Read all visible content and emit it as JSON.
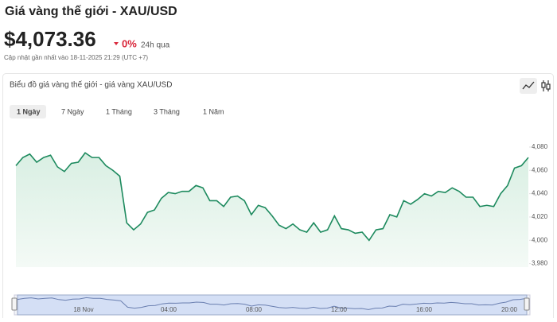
{
  "header": {
    "title": "Giá vàng thế giới - XAU/USD",
    "price": "$4,073.36",
    "change": "0%",
    "change_period": "24h qua",
    "updated": "Cập nhật gần nhất vào 18-11-2025 21:29 (UTC +7)"
  },
  "card": {
    "title": "Biểu đồ giá vàng thế giới - giá vàng XAU/USD"
  },
  "tabs": [
    "1 Ngày",
    "7 Ngày",
    "1 Tháng",
    "3 Tháng",
    "1 Năm"
  ],
  "navigator": {
    "labels": [
      "18 Nov",
      "04:00",
      "08:00",
      "12:00",
      "16:00",
      "20:00"
    ]
  },
  "chart_data": {
    "type": "area",
    "color": "#1d8a5e",
    "grid": false,
    "values": [
      4064,
      4071,
      4074,
      4067,
      4071,
      4073,
      4063,
      4059,
      4066,
      4067,
      4075,
      4071,
      4071,
      4064,
      4060,
      4055,
      4015,
      4009,
      4014,
      4024,
      4026,
      4036,
      4041,
      4040,
      4042,
      4042,
      4047,
      4045,
      4034,
      4034,
      4029,
      4037,
      4038,
      4034,
      4022,
      4030,
      4028,
      4021,
      4013,
      4010,
      4014,
      4009,
      4007,
      4015,
      4007,
      4009,
      4021,
      4010,
      4009,
      4006,
      4007,
      4000,
      4009,
      4010,
      4022,
      4020,
      4034,
      4031,
      4035,
      4040,
      4038,
      4042,
      4041,
      4045,
      4042,
      4037,
      4037,
      4029,
      4030,
      4029,
      4040,
      4047,
      4062,
      4064,
      4071
    ],
    "ylim": [
      3977,
      4097
    ],
    "yticks": [
      {
        "value": 3980,
        "label": "3,980"
      },
      {
        "value": 4000,
        "label": "4,000"
      },
      {
        "value": 4020,
        "label": "4,020"
      },
      {
        "value": 4040,
        "label": "4,040"
      },
      {
        "value": 4060,
        "label": "4,060"
      },
      {
        "value": 4080,
        "label": "4,080"
      }
    ]
  }
}
